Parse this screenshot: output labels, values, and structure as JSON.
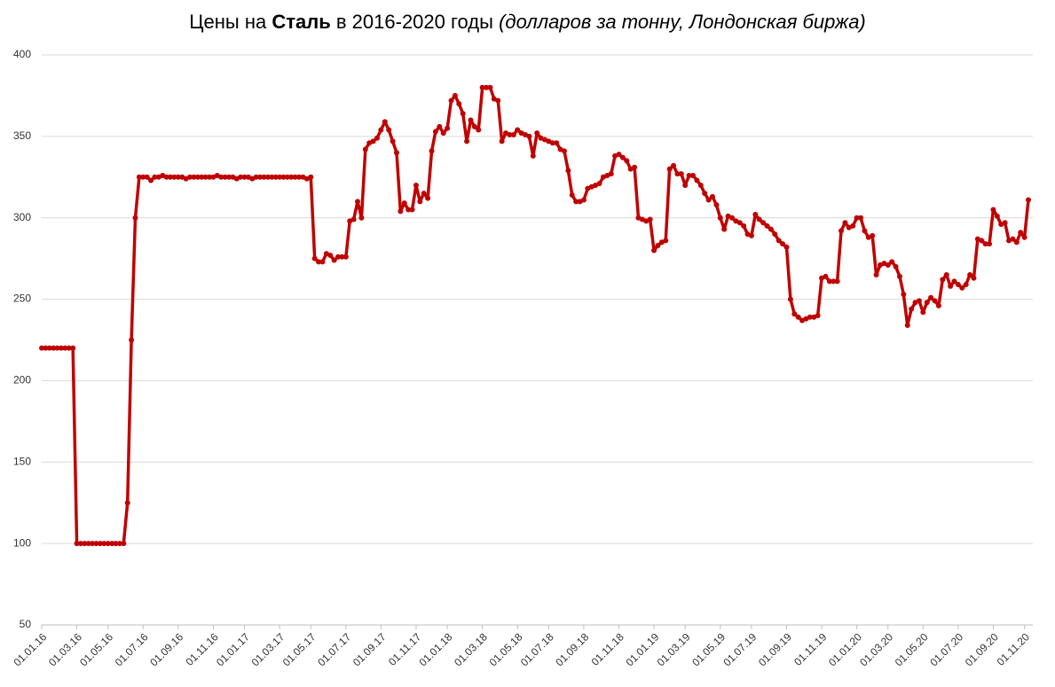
{
  "chart_data": {
    "type": "line",
    "title": [
      "Цены на",
      "Сталь",
      "в 2016-2020 годы",
      "(долларов за тонну, Лондонская биржа)"
    ],
    "categories": [
      "01.01.16",
      null,
      null,
      null,
      null,
      null,
      null,
      null,
      null,
      "01.03.16",
      null,
      null,
      null,
      null,
      null,
      null,
      null,
      "01.05.16",
      null,
      null,
      null,
      null,
      null,
      null,
      null,
      null,
      "01.07.16",
      null,
      null,
      null,
      null,
      null,
      null,
      null,
      null,
      "01.09.16",
      null,
      null,
      null,
      null,
      null,
      null,
      null,
      null,
      "01.11.16",
      null,
      null,
      null,
      null,
      null,
      null,
      null,
      "01.01.17",
      null,
      null,
      null,
      null,
      null,
      null,
      null,
      null,
      "01.03.17",
      null,
      null,
      null,
      null,
      null,
      null,
      null,
      "01.05.17",
      null,
      null,
      null,
      null,
      null,
      null,
      null,
      null,
      "01.07.17",
      null,
      null,
      null,
      null,
      null,
      null,
      null,
      null,
      "01.09.17",
      null,
      null,
      null,
      null,
      null,
      null,
      null,
      null,
      "01.11.17",
      null,
      null,
      null,
      null,
      null,
      null,
      null,
      "01.01.18",
      null,
      null,
      null,
      null,
      null,
      null,
      null,
      null,
      "01.03.18",
      null,
      null,
      null,
      null,
      null,
      null,
      null,
      null,
      "01.05.18",
      null,
      null,
      null,
      null,
      null,
      null,
      null,
      "01.07.18",
      null,
      null,
      null,
      null,
      null,
      null,
      null,
      null,
      "01.09.18",
      null,
      null,
      null,
      null,
      null,
      null,
      null,
      null,
      "01.11.18",
      null,
      null,
      null,
      null,
      null,
      null,
      null,
      null,
      "01.01.19",
      null,
      null,
      null,
      null,
      null,
      null,
      null,
      "01.03.19",
      null,
      null,
      null,
      null,
      null,
      null,
      null,
      null,
      "01.05.19",
      null,
      null,
      null,
      null,
      null,
      null,
      null,
      "01.07.19",
      null,
      null,
      null,
      null,
      null,
      null,
      null,
      null,
      "01.09.19",
      null,
      null,
      null,
      null,
      null,
      null,
      null,
      null,
      "01.11.19",
      null,
      null,
      null,
      null,
      null,
      null,
      null,
      null,
      "01.01.20",
      null,
      null,
      null,
      null,
      null,
      null,
      null,
      "01.03.20",
      null,
      null,
      null,
      null,
      null,
      null,
      null,
      null,
      "01.05.20",
      null,
      null,
      null,
      null,
      null,
      null,
      null,
      null,
      "01.07.20",
      null,
      null,
      null,
      null,
      null,
      null,
      null,
      null,
      "01.09.20",
      null,
      null,
      null,
      null,
      null,
      null,
      null,
      "01.11.20",
      null
    ],
    "values": [
      220,
      220,
      220,
      220,
      220,
      220,
      220,
      220,
      220,
      100,
      100,
      100,
      100,
      100,
      100,
      100,
      100,
      100,
      100,
      100,
      100,
      100,
      125,
      225,
      300,
      325,
      325,
      325,
      323,
      325,
      325,
      326,
      325,
      325,
      325,
      325,
      325,
      324,
      325,
      325,
      325,
      325,
      325,
      325,
      325,
      326,
      325,
      325,
      325,
      325,
      324,
      325,
      325,
      325,
      324,
      325,
      325,
      325,
      325,
      325,
      325,
      325,
      325,
      325,
      325,
      325,
      325,
      325,
      324,
      325,
      275,
      273,
      273,
      278,
      277,
      274,
      276,
      276,
      276,
      298,
      299,
      310,
      300,
      342,
      346,
      347,
      349,
      354,
      359,
      354,
      347,
      340,
      304,
      309,
      305,
      305,
      320,
      310,
      315,
      312,
      341,
      353,
      356,
      352,
      355,
      372,
      375,
      370,
      364,
      347,
      360,
      356,
      354,
      380,
      380,
      380,
      373,
      372,
      347,
      352,
      351,
      351,
      354,
      352,
      351,
      350,
      338,
      352,
      349,
      348,
      347,
      346,
      346,
      342,
      341,
      329,
      314,
      310,
      310,
      311,
      318,
      319,
      320,
      321,
      325,
      326,
      327,
      338,
      339,
      337,
      335,
      330,
      331,
      300,
      299,
      298,
      299,
      280,
      283,
      285,
      286,
      330,
      332,
      327,
      327,
      320,
      326,
      326,
      323,
      320,
      315,
      311,
      313,
      308,
      300,
      293,
      301,
      300,
      298,
      297,
      295,
      290,
      289,
      302,
      299,
      297,
      295,
      293,
      290,
      286,
      284,
      282,
      250,
      241,
      239,
      237,
      238,
      239,
      239,
      240,
      263,
      264,
      261,
      261,
      261,
      292,
      297,
      294,
      295,
      300,
      300,
      292,
      288,
      289,
      265,
      271,
      272,
      271,
      273,
      270,
      264,
      253,
      234,
      244,
      248,
      249,
      242,
      248,
      251,
      249,
      246,
      262,
      265,
      258,
      261,
      259,
      257,
      259,
      265,
      263,
      287,
      286,
      284,
      284,
      305,
      301,
      296,
      297,
      286,
      287,
      285,
      291,
      288,
      311
    ],
    "color": "#c00000",
    "ylim": [
      50,
      400
    ],
    "yticks": [
      50,
      100,
      150,
      200,
      250,
      300,
      350,
      400
    ],
    "grid": true
  }
}
